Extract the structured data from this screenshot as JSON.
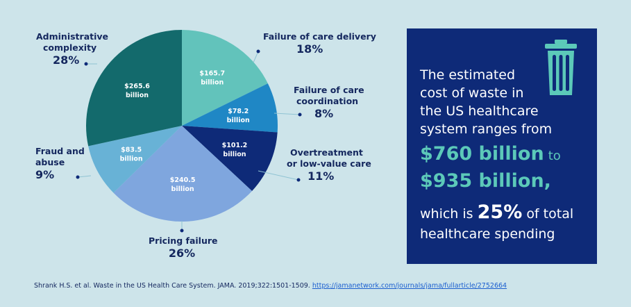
{
  "chart_data": {
    "type": "pie",
    "slices": [
      {
        "name": "Failure of care delivery",
        "label_line1": "Failure of care delivery",
        "label_line2": "",
        "percent": "18%",
        "value_line1": "$165.7",
        "value_line2": "billion",
        "value": 165.7,
        "color": "#62c3bb"
      },
      {
        "name": "Failure of care coordination",
        "label_line1": "Failure of care",
        "label_line2": "coordination",
        "percent": "8%",
        "value_line1": "$78.2",
        "value_line2": "billion",
        "value": 78.2,
        "color": "#1f87c5"
      },
      {
        "name": "Overtreatment or low-value care",
        "label_line1": "Overtreatment",
        "label_line2": "or low-value care",
        "percent": "11%",
        "value_line1": "$101.2",
        "value_line2": "billion",
        "value": 101.2,
        "color": "#0e2a78"
      },
      {
        "name": "Pricing failure",
        "label_line1": "Pricing failure",
        "label_line2": "",
        "percent": "26%",
        "value_line1": "$240.5",
        "value_line2": "billion",
        "value": 240.5,
        "color": "#7fa6de"
      },
      {
        "name": "Fraud and abuse",
        "label_line1": "Fraud and",
        "label_line2": "abuse",
        "percent": "9%",
        "value_line1": "$83.5",
        "value_line2": "billion",
        "value": 83.5,
        "color": "#68b2d6"
      },
      {
        "name": "Administrative complexity",
        "label_line1": "Administrative",
        "label_line2": "complexity",
        "percent": "28%",
        "value_line1": "$265.6",
        "value_line2": "billion",
        "value": 265.6,
        "color": "#136a6c"
      }
    ]
  },
  "panel": {
    "icon": "trash-icon",
    "line1": "The estimated",
    "line2": "cost of waste in",
    "line3": "the US healthcare",
    "line4": "system ranges from",
    "amount1": "$760 billion",
    "to": "to",
    "amount2": "$935 billion",
    "comma": ",",
    "which_is": "which is",
    "percent": "25%",
    "of_total": "of total",
    "line_last": "healthcare spending"
  },
  "source": {
    "text": "Shrank H.S. et al. Waste in the US Health Care System. JAMA. 2019;322:1501-1509.",
    "link": "https://jamanetwork.com/journals/jama/fullarticle/2752664"
  },
  "colors": {
    "background": "#cde4ea",
    "navy": "#0e2a78",
    "accent_green": "#5cc9b9",
    "text": "#14275e",
    "connector": "#8fc3d3"
  }
}
